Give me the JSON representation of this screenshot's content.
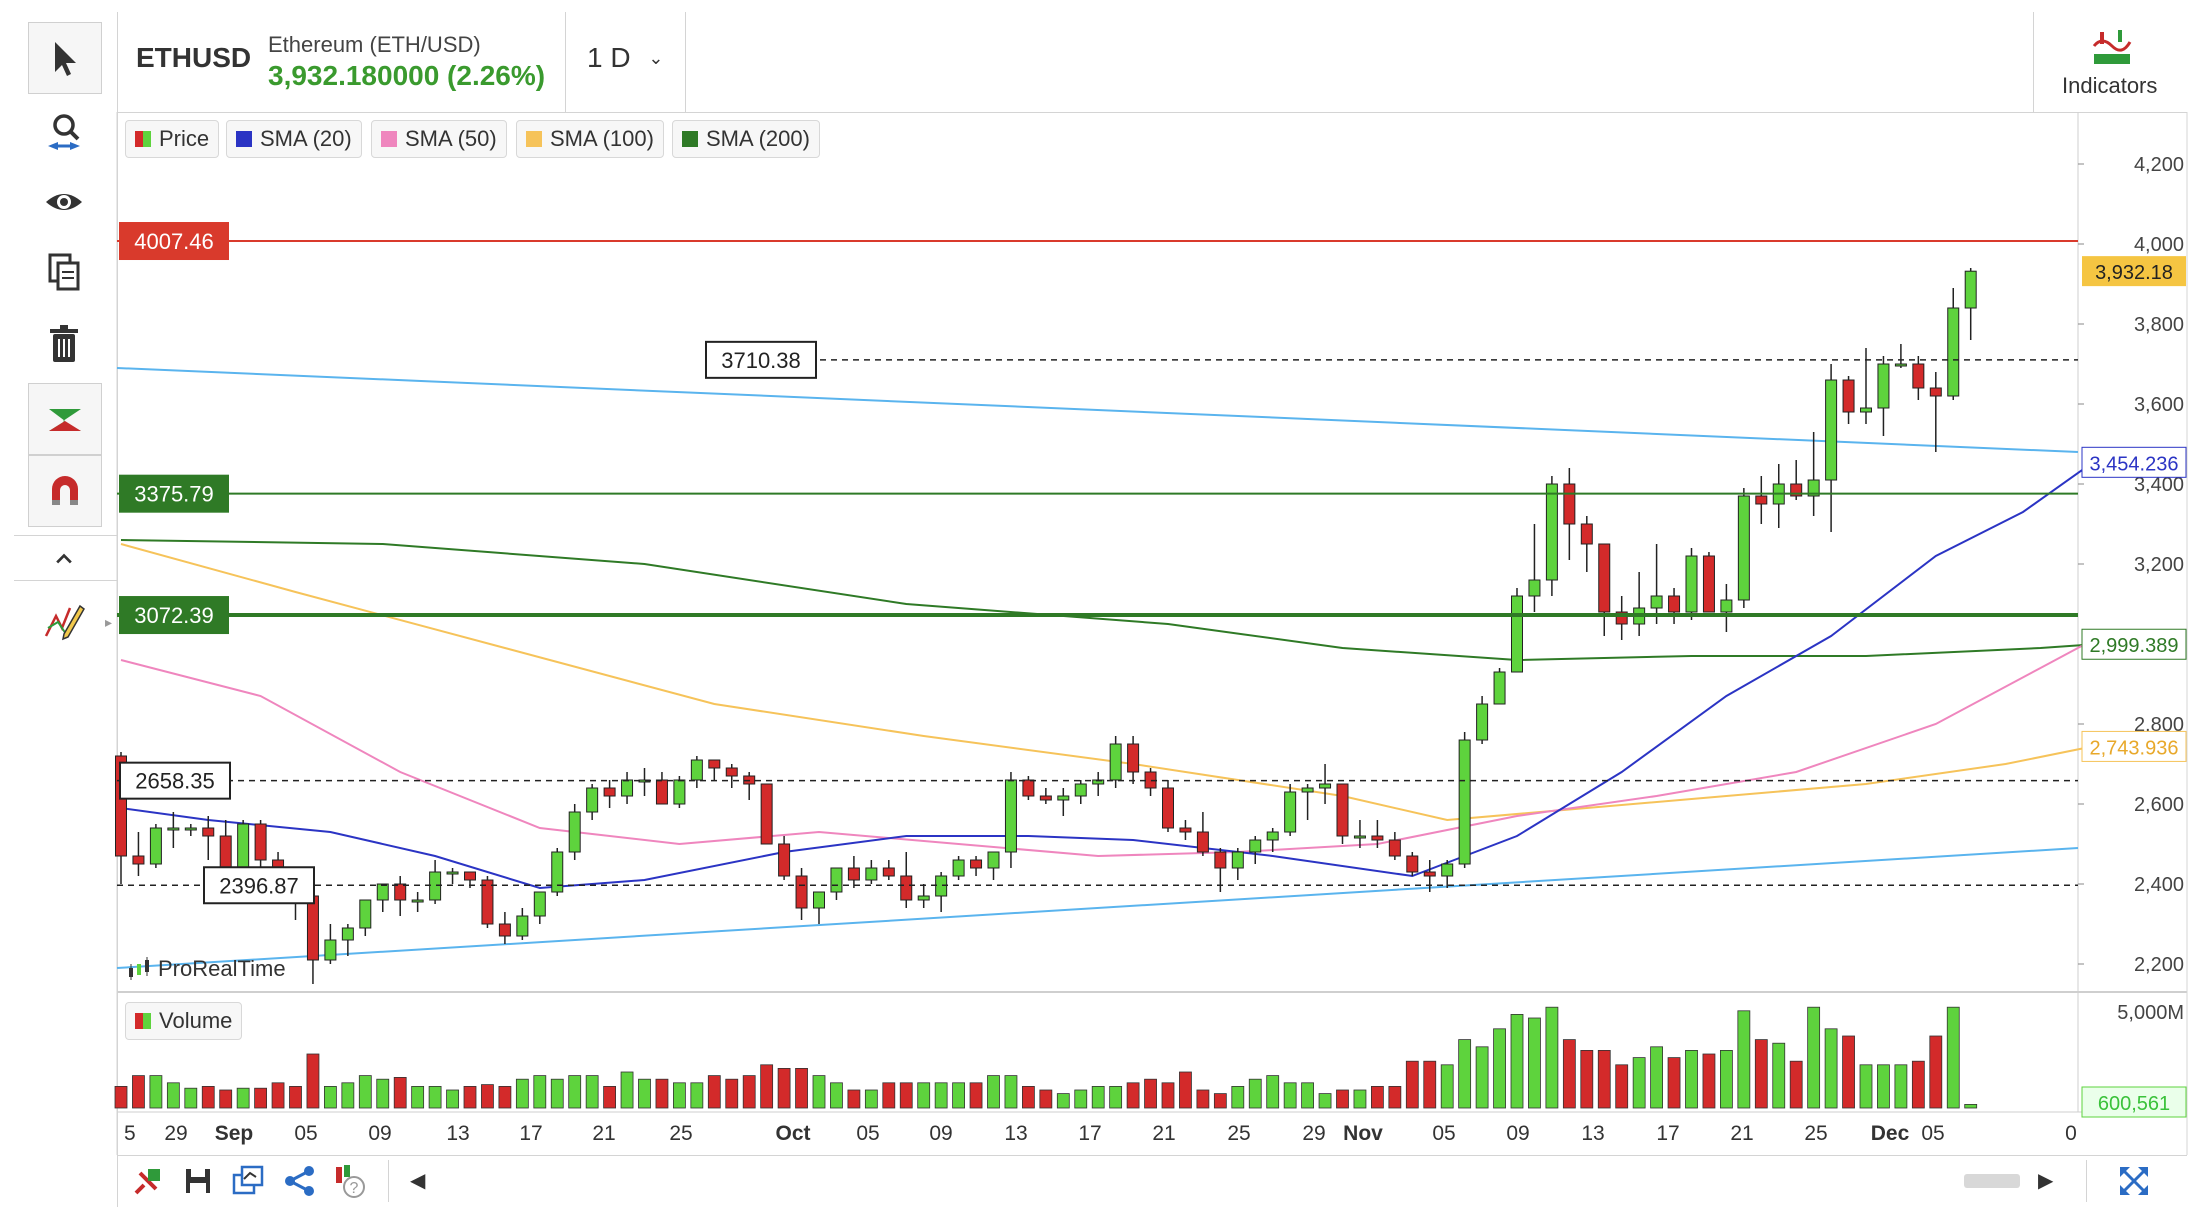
{
  "header": {
    "symbol": "ETHUSD",
    "instrument_name": "Ethereum (ETH/USD)",
    "price_change": "3,932.180000 (2.26%)",
    "timeframe": "1 D",
    "indicators_label": "Indicators"
  },
  "toolbar": {
    "icons": [
      "cursor-icon",
      "zoom-icon",
      "eye-icon",
      "copy-icon",
      "trash-icon",
      "trend-icon",
      "magnet-icon",
      "collapse-icon",
      "drawing-tools-icon"
    ]
  },
  "legend": {
    "price": "Price",
    "sma20": "SMA (20)",
    "sma50": "SMA (50)",
    "sma100": "SMA (100)",
    "sma200": "SMA (200)",
    "volume": "Volume"
  },
  "watermark": "ProRealTime",
  "levels": {
    "red": "4007.46",
    "dash_upper": "3710.38",
    "green_upper": "3375.79",
    "green_lower": "3072.39",
    "dash_mid": "2658.35",
    "dash_lower": "2396.87"
  },
  "axis_tags": {
    "price": "3,932.18",
    "sma20": "3,454.236",
    "sma200": "2,999.389",
    "sma100": "2,743.936",
    "volume": "600,561"
  },
  "colors": {
    "up": "#5ed33d",
    "down": "#d32a2a",
    "sma20": "#2b34c4",
    "sma50": "#ef86be",
    "sma100": "#f6c35a",
    "sma200": "#2f7a26",
    "trendline": "#5ab4ee",
    "resistance": "#d93a2c",
    "support": "#2f7a26"
  },
  "chart_data": {
    "type": "candlestick",
    "x_labels": [
      "5",
      "29",
      "Sep",
      "05",
      "09",
      "13",
      "17",
      "21",
      "25",
      "Oct",
      "05",
      "09",
      "13",
      "17",
      "21",
      "25",
      "29",
      "Nov",
      "05",
      "09",
      "13",
      "17",
      "21",
      "25",
      "Dec",
      "05",
      "0"
    ],
    "y_ticks": [
      2200,
      2400,
      2600,
      2800,
      3200,
      3400,
      3600,
      3800,
      4000,
      4200
    ],
    "volume_ticks": [
      "5,000M"
    ],
    "ylim": [
      2130,
      4330
    ],
    "candles": [
      [
        2720,
        2730,
        2400,
        2470
      ],
      [
        2470,
        2530,
        2420,
        2450
      ],
      [
        2450,
        2550,
        2440,
        2540
      ],
      [
        2540,
        2580,
        2490,
        2540
      ],
      [
        2540,
        2550,
        2520,
        2540
      ],
      [
        2540,
        2570,
        2460,
        2520
      ],
      [
        2520,
        2560,
        2420,
        2440
      ],
      [
        2440,
        2560,
        2430,
        2550
      ],
      [
        2550,
        2560,
        2440,
        2460
      ],
      [
        2460,
        2480,
        2390,
        2410
      ],
      [
        2410,
        2430,
        2310,
        2370
      ],
      [
        2370,
        2390,
        2150,
        2210
      ],
      [
        2210,
        2300,
        2200,
        2260
      ],
      [
        2260,
        2300,
        2220,
        2290
      ],
      [
        2290,
        2360,
        2270,
        2360
      ],
      [
        2360,
        2400,
        2330,
        2400
      ],
      [
        2400,
        2420,
        2320,
        2360
      ],
      [
        2360,
        2380,
        2330,
        2360
      ],
      [
        2360,
        2460,
        2350,
        2430
      ],
      [
        2430,
        2440,
        2400,
        2430
      ],
      [
        2430,
        2430,
        2390,
        2410
      ],
      [
        2410,
        2420,
        2290,
        2300
      ],
      [
        2300,
        2330,
        2250,
        2270
      ],
      [
        2270,
        2340,
        2260,
        2320
      ],
      [
        2320,
        2380,
        2300,
        2380
      ],
      [
        2380,
        2490,
        2370,
        2480
      ],
      [
        2480,
        2600,
        2460,
        2580
      ],
      [
        2580,
        2650,
        2560,
        2640
      ],
      [
        2640,
        2660,
        2590,
        2620
      ],
      [
        2620,
        2680,
        2600,
        2660
      ],
      [
        2660,
        2690,
        2620,
        2660
      ],
      [
        2660,
        2680,
        2600,
        2600
      ],
      [
        2600,
        2670,
        2590,
        2660
      ],
      [
        2660,
        2720,
        2640,
        2710
      ],
      [
        2710,
        2700,
        2660,
        2690
      ],
      [
        2690,
        2700,
        2640,
        2670
      ],
      [
        2670,
        2680,
        2610,
        2650
      ],
      [
        2650,
        2650,
        2500,
        2500
      ],
      [
        2500,
        2520,
        2410,
        2420
      ],
      [
        2420,
        2440,
        2310,
        2340
      ],
      [
        2340,
        2380,
        2300,
        2380
      ],
      [
        2380,
        2440,
        2360,
        2440
      ],
      [
        2440,
        2470,
        2390,
        2410
      ],
      [
        2410,
        2460,
        2400,
        2440
      ],
      [
        2440,
        2460,
        2410,
        2420
      ],
      [
        2420,
        2480,
        2340,
        2360
      ],
      [
        2360,
        2400,
        2340,
        2370
      ],
      [
        2370,
        2430,
        2330,
        2420
      ],
      [
        2420,
        2470,
        2410,
        2460
      ],
      [
        2460,
        2470,
        2420,
        2440
      ],
      [
        2440,
        2480,
        2410,
        2480
      ],
      [
        2480,
        2680,
        2440,
        2660
      ],
      [
        2660,
        2670,
        2610,
        2620
      ],
      [
        2620,
        2640,
        2600,
        2610
      ],
      [
        2610,
        2640,
        2570,
        2620
      ],
      [
        2620,
        2660,
        2600,
        2650
      ],
      [
        2650,
        2680,
        2620,
        2660
      ],
      [
        2660,
        2770,
        2640,
        2750
      ],
      [
        2750,
        2770,
        2650,
        2680
      ],
      [
        2680,
        2690,
        2620,
        2640
      ],
      [
        2640,
        2660,
        2530,
        2540
      ],
      [
        2540,
        2560,
        2510,
        2530
      ],
      [
        2530,
        2580,
        2470,
        2480
      ],
      [
        2480,
        2490,
        2380,
        2440
      ],
      [
        2440,
        2490,
        2410,
        2480
      ],
      [
        2480,
        2520,
        2450,
        2510
      ],
      [
        2510,
        2540,
        2480,
        2530
      ],
      [
        2530,
        2650,
        2520,
        2630
      ],
      [
        2630,
        2650,
        2560,
        2640
      ],
      [
        2640,
        2700,
        2600,
        2650
      ],
      [
        2650,
        2650,
        2500,
        2520
      ],
      [
        2520,
        2560,
        2490,
        2520
      ],
      [
        2520,
        2560,
        2490,
        2510
      ],
      [
        2510,
        2530,
        2460,
        2470
      ],
      [
        2470,
        2480,
        2420,
        2430
      ],
      [
        2430,
        2460,
        2380,
        2420
      ],
      [
        2420,
        2460,
        2390,
        2450
      ],
      [
        2450,
        2780,
        2440,
        2760
      ],
      [
        2760,
        2870,
        2750,
        2850
      ],
      [
        2850,
        2940,
        2850,
        2930
      ],
      [
        2930,
        3140,
        2930,
        3120
      ],
      [
        3120,
        3300,
        3080,
        3160
      ],
      [
        3160,
        3420,
        3120,
        3400
      ],
      [
        3400,
        3440,
        3210,
        3300
      ],
      [
        3300,
        3320,
        3180,
        3250
      ],
      [
        3250,
        3250,
        3020,
        3080
      ],
      [
        3080,
        3120,
        3010,
        3050
      ],
      [
        3050,
        3180,
        3020,
        3090
      ],
      [
        3090,
        3250,
        3050,
        3120
      ],
      [
        3120,
        3140,
        3050,
        3080
      ],
      [
        3080,
        3240,
        3060,
        3220
      ],
      [
        3220,
        3230,
        3090,
        3080
      ],
      [
        3080,
        3150,
        3030,
        3110
      ],
      [
        3110,
        3390,
        3090,
        3370
      ],
      [
        3370,
        3420,
        3300,
        3350
      ],
      [
        3350,
        3450,
        3290,
        3400
      ],
      [
        3400,
        3460,
        3360,
        3370
      ],
      [
        3370,
        3530,
        3320,
        3410
      ],
      [
        3410,
        3700,
        3280,
        3660
      ],
      [
        3660,
        3670,
        3550,
        3580
      ],
      [
        3580,
        3740,
        3550,
        3590
      ],
      [
        3590,
        3720,
        3520,
        3700
      ],
      [
        3700,
        3750,
        3690,
        3700
      ],
      [
        3700,
        3720,
        3610,
        3640
      ],
      [
        3640,
        3680,
        3480,
        3620
      ],
      [
        3620,
        3890,
        3610,
        3840
      ],
      [
        3840,
        3940,
        3760,
        3932
      ]
    ],
    "volumes": [
      0.6,
      0.9,
      0.9,
      0.7,
      0.55,
      0.6,
      0.5,
      0.55,
      0.55,
      0.7,
      0.6,
      1.5,
      0.6,
      0.7,
      0.9,
      0.8,
      0.85,
      0.6,
      0.6,
      0.5,
      0.6,
      0.65,
      0.6,
      0.8,
      0.9,
      0.8,
      0.9,
      0.9,
      0.6,
      1.0,
      0.8,
      0.8,
      0.7,
      0.7,
      0.9,
      0.8,
      0.9,
      1.2,
      1.1,
      1.1,
      0.9,
      0.7,
      0.5,
      0.5,
      0.7,
      0.7,
      0.7,
      0.7,
      0.7,
      0.7,
      0.9,
      0.9,
      0.6,
      0.5,
      0.4,
      0.5,
      0.6,
      0.6,
      0.7,
      0.8,
      0.7,
      1.0,
      0.5,
      0.4,
      0.6,
      0.8,
      0.9,
      0.7,
      0.7,
      0.4,
      0.5,
      0.5,
      0.6,
      0.6,
      1.3,
      1.3,
      1.2,
      1.9,
      1.7,
      2.2,
      2.6,
      2.5,
      2.8,
      1.9,
      1.6,
      1.6,
      1.2,
      1.4,
      1.7,
      1.4,
      1.6,
      1.5,
      1.6,
      2.7,
      1.9,
      1.8,
      1.3,
      2.8,
      2.2,
      2.0,
      1.2,
      1.2,
      1.2,
      1.3,
      2.0,
      2.8,
      0.1
    ],
    "volume_max": 3.0,
    "sma20": [
      [
        0,
        2590
      ],
      [
        5,
        2560
      ],
      [
        12,
        2530
      ],
      [
        18,
        2470
      ],
      [
        24,
        2390
      ],
      [
        30,
        2410
      ],
      [
        38,
        2480
      ],
      [
        45,
        2520
      ],
      [
        52,
        2520
      ],
      [
        58,
        2510
      ],
      [
        66,
        2470
      ],
      [
        74,
        2420
      ],
      [
        80,
        2520
      ],
      [
        86,
        2680
      ],
      [
        92,
        2870
      ],
      [
        98,
        3020
      ],
      [
        104,
        3220
      ],
      [
        109,
        3330
      ],
      [
        113,
        3454
      ]
    ],
    "sma50": [
      [
        0,
        2960
      ],
      [
        8,
        2870
      ],
      [
        16,
        2680
      ],
      [
        24,
        2540
      ],
      [
        32,
        2500
      ],
      [
        40,
        2530
      ],
      [
        48,
        2500
      ],
      [
        56,
        2470
      ],
      [
        64,
        2480
      ],
      [
        72,
        2500
      ],
      [
        80,
        2570
      ],
      [
        88,
        2620
      ],
      [
        96,
        2680
      ],
      [
        104,
        2800
      ],
      [
        110,
        2940
      ],
      [
        113,
        3010
      ]
    ],
    "sma100": [
      [
        0,
        3250
      ],
      [
        10,
        3130
      ],
      [
        22,
        2990
      ],
      [
        34,
        2850
      ],
      [
        46,
        2770
      ],
      [
        58,
        2700
      ],
      [
        70,
        2620
      ],
      [
        76,
        2560
      ],
      [
        84,
        2590
      ],
      [
        92,
        2620
      ],
      [
        100,
        2650
      ],
      [
        108,
        2700
      ],
      [
        113,
        2744
      ]
    ],
    "sma200": [
      [
        0,
        3260
      ],
      [
        15,
        3250
      ],
      [
        30,
        3200
      ],
      [
        45,
        3100
      ],
      [
        60,
        3050
      ],
      [
        70,
        2990
      ],
      [
        80,
        2960
      ],
      [
        90,
        2970
      ],
      [
        100,
        2970
      ],
      [
        110,
        2990
      ],
      [
        113,
        2999
      ]
    ],
    "trend_upper": [
      3690,
      3480
    ],
    "trend_lower": [
      2190,
      2490
    ]
  }
}
